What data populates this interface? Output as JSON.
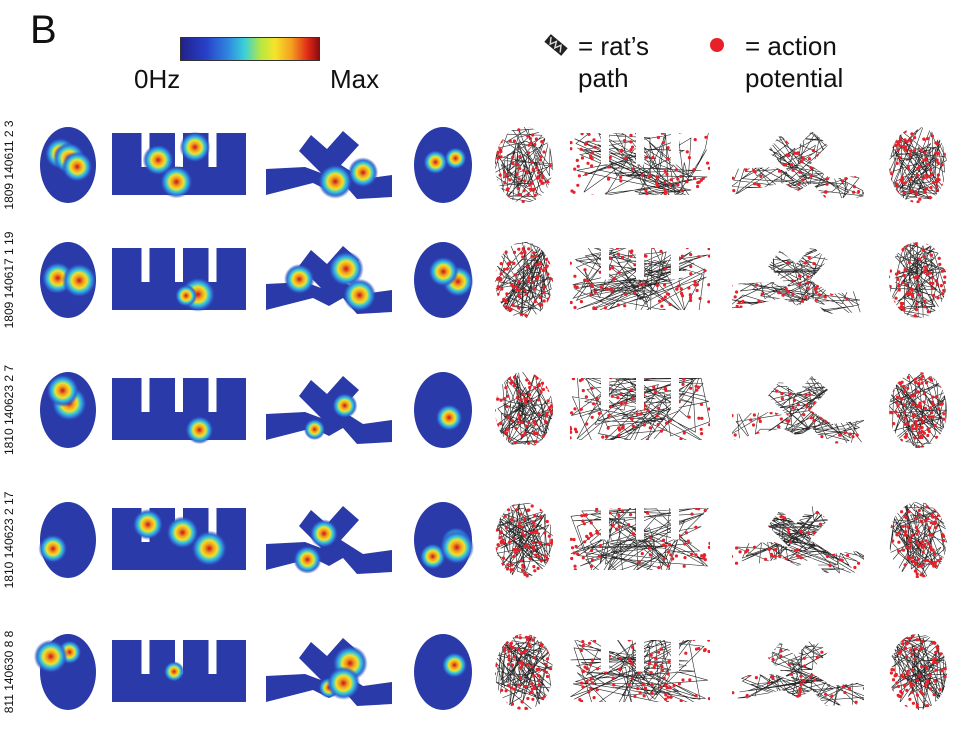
{
  "panel_letter": "B",
  "colorbar": {
    "min_label": "0Hz",
    "max_label": "Max"
  },
  "legend": {
    "path_text_line1": "= rat’s",
    "path_text_line2": "path",
    "spike_text_line1": "= action",
    "spike_text_line2": "potential",
    "spike_color": "#e8202a",
    "path_color": "#111111"
  },
  "rows": [
    {
      "label": "1809 140611 2 3"
    },
    {
      "label": "1809 140617 1 19"
    },
    {
      "label": "1810 140623 2 7"
    },
    {
      "label": "1810 140623 2 17"
    },
    {
      "label": "811 140630 8 8"
    }
  ],
  "colors": {
    "map_background": "#2a3aa8",
    "hot": "#d42a1a",
    "warm": "#f2d22a",
    "cool": "#3ad0d8"
  }
}
